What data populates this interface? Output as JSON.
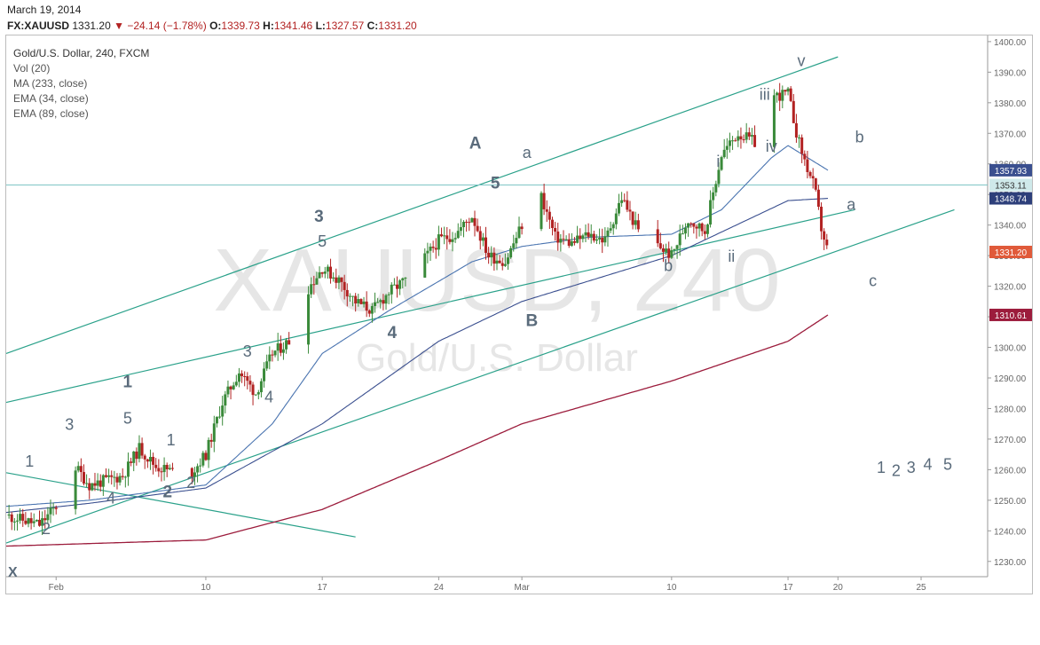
{
  "header": {
    "date": "March 19, 2014",
    "symbol": "FX:XAUUSD",
    "last": "1331.20",
    "change": "−24.14 (−1.78%)",
    "o_label": "O:",
    "o_value": "1339.73",
    "h_label": "H:",
    "h_value": "1341.46",
    "l_label": "L:",
    "l_value": "1327.57",
    "c_label": "C:",
    "c_value": "1331.20"
  },
  "legend": {
    "title": "Gold/U.S. Dollar, 240, FXCM",
    "items": [
      "Vol (20)",
      "MA (233, close)",
      "EMA (34, close)",
      "EMA (89, close)"
    ]
  },
  "watermark": {
    "line1": "XAUUSD, 240",
    "line2": "Gold/U.S. Dollar"
  },
  "colors": {
    "up": "#3a8a3a",
    "down": "#b22222",
    "ma233": "#9c1c3c",
    "ema34": "#4a74b0",
    "ema89": "#3a4f8f",
    "channel": "#2aa18a",
    "hline": "#7fc6c6",
    "label": "#5a6b7b"
  },
  "chart_data": {
    "type": "candlestick",
    "title": "Gold/U.S. Dollar, 240, FXCM",
    "ylim": [
      1225,
      1402
    ],
    "x_domain": [
      "2014-01-29",
      "2014-03-29"
    ],
    "y_ticks": [
      1230,
      1240,
      1250,
      1260,
      1270,
      1280,
      1290,
      1300,
      1310,
      1320,
      1330,
      1340,
      1350,
      1360,
      1370,
      1380,
      1390,
      1400
    ],
    "x_ticks": [
      {
        "date": "2014-02-01",
        "label": "Feb"
      },
      {
        "date": "2014-02-10",
        "label": "10"
      },
      {
        "date": "2014-02-17",
        "label": "17"
      },
      {
        "date": "2014-02-24",
        "label": "24"
      },
      {
        "date": "2014-03-01",
        "label": "Mar"
      },
      {
        "date": "2014-03-10",
        "label": "10"
      },
      {
        "date": "2014-03-17",
        "label": "17"
      },
      {
        "date": "2014-03-20",
        "label": "20"
      },
      {
        "date": "2014-03-25",
        "label": "25"
      }
    ],
    "price_key": [
      {
        "date": "2014-01-29",
        "price": 1245
      },
      {
        "date": "2014-01-31",
        "price": 1242
      },
      {
        "date": "2014-02-01",
        "price": 1248
      },
      {
        "date": "2014-02-02",
        "price": 1262
      },
      {
        "date": "2014-02-03",
        "price": 1255
      },
      {
        "date": "2014-02-05",
        "price": 1258
      },
      {
        "date": "2014-02-06",
        "price": 1267
      },
      {
        "date": "2014-02-07",
        "price": 1261
      },
      {
        "date": "2014-02-09",
        "price": 1258
      },
      {
        "date": "2014-02-10",
        "price": 1265
      },
      {
        "date": "2014-02-11",
        "price": 1282
      },
      {
        "date": "2014-02-12",
        "price": 1292
      },
      {
        "date": "2014-02-13",
        "price": 1285
      },
      {
        "date": "2014-02-14",
        "price": 1298
      },
      {
        "date": "2014-02-15",
        "price": 1302
      },
      {
        "date": "2014-02-16",
        "price": 1318
      },
      {
        "date": "2014-02-17",
        "price": 1326
      },
      {
        "date": "2014-02-18",
        "price": 1322
      },
      {
        "date": "2014-02-19",
        "price": 1315
      },
      {
        "date": "2014-02-20",
        "price": 1312
      },
      {
        "date": "2014-02-21",
        "price": 1318
      },
      {
        "date": "2014-02-22",
        "price": 1322
      },
      {
        "date": "2014-02-23",
        "price": 1328
      },
      {
        "date": "2014-02-24",
        "price": 1335
      },
      {
        "date": "2014-02-25",
        "price": 1337
      },
      {
        "date": "2014-02-26",
        "price": 1343
      },
      {
        "date": "2014-02-27",
        "price": 1330
      },
      {
        "date": "2014-02-28",
        "price": 1328
      },
      {
        "date": "2014-03-01",
        "price": 1340
      },
      {
        "date": "2014-03-02",
        "price": 1352
      },
      {
        "date": "2014-03-03",
        "price": 1336
      },
      {
        "date": "2014-03-04",
        "price": 1334
      },
      {
        "date": "2014-03-05",
        "price": 1337
      },
      {
        "date": "2014-03-06",
        "price": 1335
      },
      {
        "date": "2014-03-07",
        "price": 1349
      },
      {
        "date": "2014-03-08",
        "price": 1338
      },
      {
        "date": "2014-03-09",
        "price": 1334
      },
      {
        "date": "2014-03-10",
        "price": 1330
      },
      {
        "date": "2014-03-11",
        "price": 1342
      },
      {
        "date": "2014-03-12",
        "price": 1338
      },
      {
        "date": "2014-03-13",
        "price": 1363
      },
      {
        "date": "2014-03-14",
        "price": 1370
      },
      {
        "date": "2014-03-15",
        "price": 1367
      },
      {
        "date": "2014-03-16",
        "price": 1382
      },
      {
        "date": "2014-03-17",
        "price": 1383
      },
      {
        "date": "2014-03-17.6",
        "price": 1368
      },
      {
        "date": "2014-03-18",
        "price": 1361
      },
      {
        "date": "2014-03-18.6",
        "price": 1352
      },
      {
        "date": "2014-03-19",
        "price": 1339
      },
      {
        "date": "2014-03-19.4",
        "price": 1331
      }
    ],
    "ma233_key": [
      {
        "date": "2014-01-29",
        "value": 1235
      },
      {
        "date": "2014-02-10",
        "value": 1237
      },
      {
        "date": "2014-02-17",
        "value": 1247
      },
      {
        "date": "2014-02-24",
        "value": 1263
      },
      {
        "date": "2014-03-01",
        "value": 1275
      },
      {
        "date": "2014-03-10",
        "value": 1289
      },
      {
        "date": "2014-03-17",
        "value": 1302
      },
      {
        "date": "2014-03-19.4",
        "value": 1310.61
      }
    ],
    "ema34_key": [
      {
        "date": "2014-01-29",
        "value": 1248
      },
      {
        "date": "2014-02-03",
        "value": 1250
      },
      {
        "date": "2014-02-10",
        "value": 1255
      },
      {
        "date": "2014-02-14",
        "value": 1275
      },
      {
        "date": "2014-02-17",
        "value": 1298
      },
      {
        "date": "2014-02-21",
        "value": 1312
      },
      {
        "date": "2014-02-26",
        "value": 1328
      },
      {
        "date": "2014-03-01",
        "value": 1333
      },
      {
        "date": "2014-03-05",
        "value": 1336
      },
      {
        "date": "2014-03-10",
        "value": 1337
      },
      {
        "date": "2014-03-13",
        "value": 1345
      },
      {
        "date": "2014-03-16",
        "value": 1362
      },
      {
        "date": "2014-03-17",
        "value": 1366
      },
      {
        "date": "2014-03-19.4",
        "value": 1357.93
      }
    ],
    "ema89_key": [
      {
        "date": "2014-01-29",
        "value": 1246
      },
      {
        "date": "2014-02-03",
        "value": 1249
      },
      {
        "date": "2014-02-10",
        "value": 1254
      },
      {
        "date": "2014-02-17",
        "value": 1275
      },
      {
        "date": "2014-02-24",
        "value": 1302
      },
      {
        "date": "2014-03-01",
        "value": 1315
      },
      {
        "date": "2014-03-10",
        "value": 1330
      },
      {
        "date": "2014-03-17",
        "value": 1348
      },
      {
        "date": "2014-03-19.4",
        "value": 1348.74
      }
    ],
    "channel_lines": [
      {
        "from": {
          "date": "2014-01-29",
          "price": 1298
        },
        "to": {
          "date": "2014-03-20",
          "price": 1395
        }
      },
      {
        "from": {
          "date": "2014-01-29",
          "price": 1282
        },
        "to": {
          "date": "2014-03-21",
          "price": 1345
        }
      },
      {
        "from": {
          "date": "2014-01-29",
          "price": 1236
        },
        "to": {
          "date": "2014-03-27",
          "price": 1345
        }
      },
      {
        "from": {
          "date": "2014-01-29",
          "price": 1259
        },
        "to": {
          "date": "2014-02-19",
          "price": 1238
        }
      }
    ],
    "horizontal_level": 1353.11,
    "price_labels": [
      {
        "value": 1357.93,
        "text": "1357.93",
        "bg": "#3a4f8f"
      },
      {
        "value": 1353.11,
        "text": "1353.11",
        "bg": "#cfe9ea",
        "fg": "#333"
      },
      {
        "value": 1348.74,
        "text": "1348.74",
        "bg": "#2d3f7a"
      },
      {
        "value": 1331.2,
        "text": "1331.20",
        "bg": "#e05a3a"
      },
      {
        "value": 1310.61,
        "text": "1310.61",
        "bg": "#9c1c3c"
      }
    ],
    "wave_labels": [
      {
        "text": "1",
        "date": "2014-01-30.4",
        "price": 1261,
        "bold": false
      },
      {
        "text": "2",
        "date": "2014-01-31.4",
        "price": 1239,
        "bold": false
      },
      {
        "text": "3",
        "date": "2014-02-01.8",
        "price": 1273,
        "bold": false
      },
      {
        "text": "4",
        "date": "2014-02-04.3",
        "price": 1249,
        "bold": false
      },
      {
        "text": "5",
        "date": "2014-02-05.3",
        "price": 1275,
        "bold": false
      },
      {
        "text": "1",
        "date": "2014-02-05.3",
        "price": 1287,
        "bold": true
      },
      {
        "text": "2",
        "date": "2014-02-07.7",
        "price": 1251,
        "bold": true
      },
      {
        "text": "1",
        "date": "2014-02-07.9",
        "price": 1268,
        "bold": false
      },
      {
        "text": "2",
        "date": "2014-02-09.1",
        "price": 1254,
        "bold": false
      },
      {
        "text": "3",
        "date": "2014-02-12.5",
        "price": 1297,
        "bold": false
      },
      {
        "text": "4",
        "date": "2014-02-13.8",
        "price": 1282,
        "bold": false
      },
      {
        "text": "5",
        "date": "2014-02-17",
        "price": 1333,
        "bold": false
      },
      {
        "text": "3",
        "date": "2014-02-16.8",
        "price": 1341,
        "bold": true
      },
      {
        "text": "4",
        "date": "2014-02-21.2",
        "price": 1303,
        "bold": true
      },
      {
        "text": "A",
        "date": "2014-02-26.2",
        "price": 1365,
        "bold": true
      },
      {
        "text": "5",
        "date": "2014-02-27.4",
        "price": 1352,
        "bold": true
      },
      {
        "text": "a",
        "date": "2014-03-01.3",
        "price": 1362,
        "bold": false
      },
      {
        "text": "B",
        "date": "2014-03-01.6",
        "price": 1307,
        "bold": true
      },
      {
        "text": "b",
        "date": "2014-03-09.8",
        "price": 1325,
        "bold": false
      },
      {
        "text": "i",
        "date": "2014-03-12.8",
        "price": 1359,
        "bold": false
      },
      {
        "text": "ii",
        "date": "2014-03-13.6",
        "price": 1328,
        "bold": false
      },
      {
        "text": "iii",
        "date": "2014-03-15.6",
        "price": 1381,
        "bold": false
      },
      {
        "text": "iv",
        "date": "2014-03-16",
        "price": 1364,
        "bold": false
      },
      {
        "text": "v",
        "date": "2014-03-17.8",
        "price": 1392,
        "bold": false
      },
      {
        "text": "b",
        "date": "2014-03-21.3",
        "price": 1367,
        "bold": false
      },
      {
        "text": "a",
        "date": "2014-03-20.8",
        "price": 1345,
        "bold": false
      },
      {
        "text": "c",
        "date": "2014-03-22.1",
        "price": 1320,
        "bold": false
      },
      {
        "text": "1",
        "date": "2014-03-22.6",
        "price": 1259,
        "bold": false
      },
      {
        "text": "2",
        "date": "2014-03-23.5",
        "price": 1258,
        "bold": false
      },
      {
        "text": "3",
        "date": "2014-03-24.4",
        "price": 1259,
        "bold": false
      },
      {
        "text": "4",
        "date": "2014-03-25.4",
        "price": 1260,
        "bold": false
      },
      {
        "text": "5",
        "date": "2014-03-26.6",
        "price": 1260,
        "bold": false
      }
    ],
    "corner_mark": "X"
  }
}
